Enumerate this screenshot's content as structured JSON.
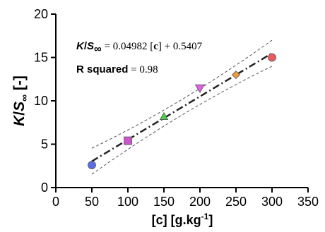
{
  "chart_data": {
    "type": "scatter",
    "xlabel_main": "[c] [g.kg",
    "xlabel_sup": "-1",
    "xlabel_end": "]",
    "ylabel_k": "K",
    "ylabel_slash": "/",
    "ylabel_s": "S",
    "ylabel_sub": "∞",
    "ylabel_unit": " [-]",
    "xlim": [
      0,
      350
    ],
    "ylim": [
      0,
      20
    ],
    "xticks": [
      "0",
      "50",
      "100",
      "150",
      "200",
      "250",
      "300",
      "350"
    ],
    "yticks": [
      "0",
      "5",
      "10",
      "15",
      "20"
    ],
    "points": [
      {
        "x": 50,
        "y": 2.6,
        "marker": "circle",
        "color": "#5b6ee8"
      },
      {
        "x": 100,
        "y": 5.4,
        "marker": "square",
        "color": "#cc55cc"
      },
      {
        "x": 150,
        "y": 8.2,
        "marker": "triangle-up",
        "color": "#4ccf4c"
      },
      {
        "x": 200,
        "y": 11.5,
        "marker": "triangle-down",
        "color": "#e060e6"
      },
      {
        "x": 250,
        "y": 13.0,
        "marker": "diamond",
        "color": "#f09a3e"
      },
      {
        "x": 300,
        "y": 15.0,
        "marker": "circle",
        "color": "#ea5c5c"
      }
    ],
    "fit": {
      "slope": 0.04982,
      "intercept": 0.5407,
      "x_range": [
        50,
        300
      ],
      "band_halfwidth": 0.9,
      "band_curve": 0.6
    },
    "equation": {
      "lhs_k": "K",
      "lhs_slash": "/",
      "lhs_s": "S",
      "lhs_sub": "∞",
      "rhs": " = 0.04982 [",
      "rhs_c": "c",
      "rhs_end": "] + 0.5407"
    },
    "r_squared": {
      "label": "R squared",
      "value": " = 0.98"
    }
  }
}
